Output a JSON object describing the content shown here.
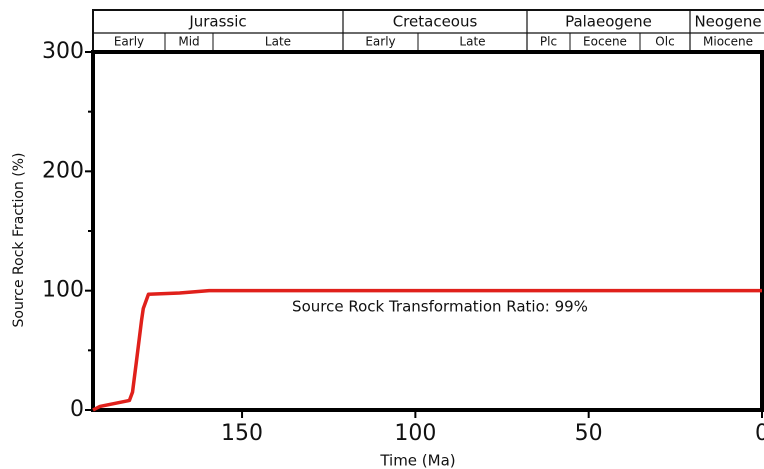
{
  "chart_data": {
    "type": "line",
    "x_label": "Time (Ma)",
    "y_label": "Source Rock Fraction (%)",
    "annotation": "Source Rock Transformation Ratio: 99%",
    "periods": [
      "Jurassic",
      "Cretaceous",
      "Palaeogene",
      "Neogene"
    ],
    "epochs": [
      "Early",
      "Mid",
      "Late",
      "Early",
      "Late",
      "Plc",
      "Eocene",
      "Olc",
      "Miocene"
    ],
    "x": [
      193,
      191,
      182.5,
      181.6,
      180.5,
      179,
      178.5,
      177,
      168,
      159.5,
      0
    ],
    "series": [
      {
        "name": "Source Rock Fraction",
        "color": "#e0201b",
        "values": [
          0,
          3,
          8,
          15,
          40,
          75,
          85,
          97,
          98,
          100,
          100
        ]
      }
    ],
    "xlim": [
      193,
      0
    ],
    "xticks": [
      150,
      100,
      50,
      0
    ],
    "ylim": [
      0,
      300
    ],
    "yticks": [
      0,
      100,
      200,
      300
    ],
    "yminorticks": [
      50,
      150,
      250
    ]
  }
}
